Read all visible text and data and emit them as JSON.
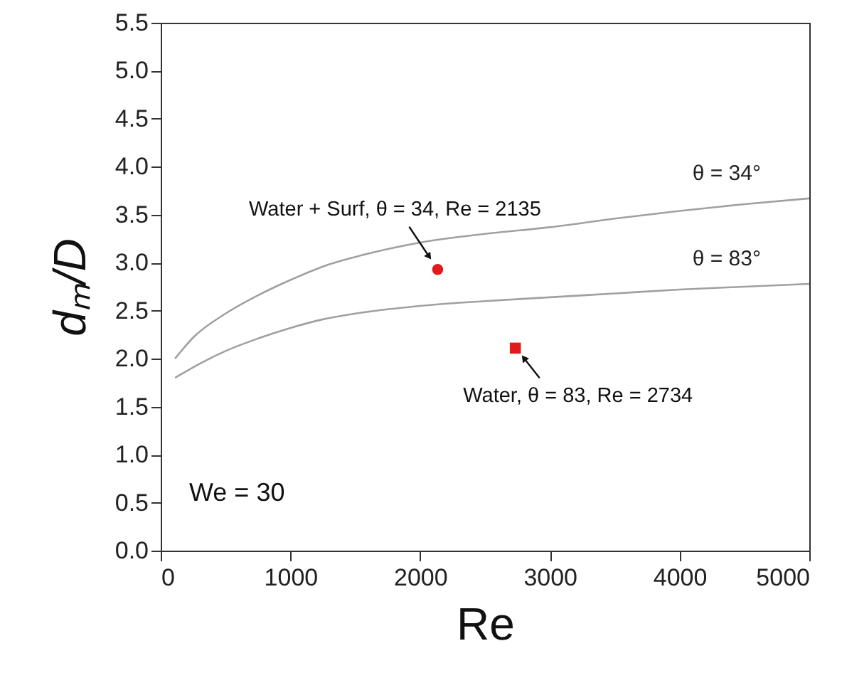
{
  "chart_data": {
    "type": "line",
    "xlabel": "Re",
    "ylabel": "dₘ/D",
    "xlim": [
      0,
      5000
    ],
    "xticks": [
      0,
      1000,
      2000,
      3000,
      4000,
      5000
    ],
    "ylim": [
      0,
      5.5
    ],
    "yticks": [
      {
        "value": 0,
        "label": "0.0"
      },
      0.5,
      {
        "value": 1,
        "label": "1.0"
      },
      1.5,
      {
        "value": 2,
        "label": "2.0"
      },
      2.5,
      {
        "value": 3,
        "label": "3.0"
      },
      3.5,
      {
        "value": 4,
        "label": "4.0"
      },
      4.5,
      {
        "value": 5,
        "label": "5.0"
      },
      5.5
    ],
    "series": [
      {
        "name": "θ = 34°",
        "color": "#a0a0a0",
        "x": [
          110,
          250,
          500,
          750,
          1000,
          1250,
          1500,
          2000,
          2500,
          3000,
          3500,
          4000,
          4500,
          5000
        ],
        "values": [
          2.0,
          2.22,
          2.47,
          2.66,
          2.82,
          2.96,
          3.06,
          3.21,
          3.3,
          3.37,
          3.46,
          3.54,
          3.61,
          3.67
        ]
      },
      {
        "name": "θ = 83°",
        "color": "#a0a0a0",
        "x": [
          110,
          250,
          500,
          750,
          1000,
          1250,
          1500,
          2000,
          2500,
          3000,
          3500,
          4000,
          4500,
          5000
        ],
        "values": [
          1.8,
          1.91,
          2.08,
          2.21,
          2.32,
          2.41,
          2.47,
          2.55,
          2.6,
          2.64,
          2.68,
          2.72,
          2.75,
          2.78
        ]
      },
      {
        "type": "scatter",
        "color": "#e31a1c",
        "marker": "circle",
        "x": [
          2135
        ],
        "values": [
          2.93
        ]
      },
      {
        "type": "scatter",
        "color": "#e31a1c",
        "marker": "square",
        "x": [
          2734
        ],
        "values": [
          2.11
        ]
      }
    ],
    "annotations": [
      {
        "text": "Water + Surf, θ = 34, Re = 2135",
        "x": 2135,
        "y": 2.93
      },
      {
        "text": "Water, θ = 83, Re = 2734",
        "x": 2734,
        "y": 2.11
      },
      "We = 30"
    ]
  }
}
